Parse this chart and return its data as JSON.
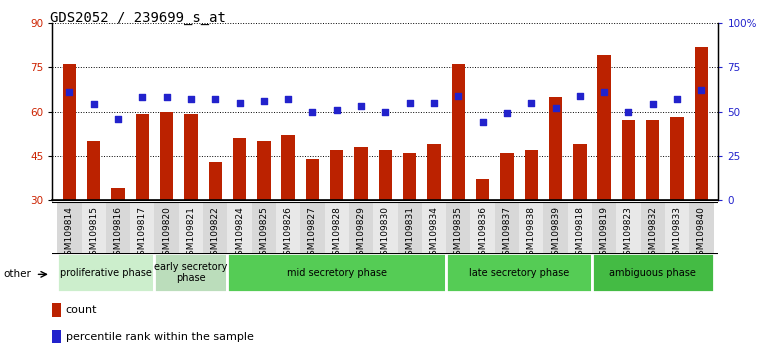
{
  "title": "GDS2052 / 239699_s_at",
  "samples": [
    "GSM109814",
    "GSM109815",
    "GSM109816",
    "GSM109817",
    "GSM109820",
    "GSM109821",
    "GSM109822",
    "GSM109824",
    "GSM109825",
    "GSM109826",
    "GSM109827",
    "GSM109828",
    "GSM109829",
    "GSM109830",
    "GSM109831",
    "GSM109834",
    "GSM109835",
    "GSM109836",
    "GSM109837",
    "GSM109838",
    "GSM109839",
    "GSM109818",
    "GSM109819",
    "GSM109823",
    "GSM109832",
    "GSM109833",
    "GSM109840"
  ],
  "counts": [
    76,
    50,
    34,
    59,
    60,
    59,
    43,
    51,
    50,
    52,
    44,
    47,
    48,
    47,
    46,
    49,
    76,
    37,
    46,
    47,
    65,
    49,
    79,
    57,
    57,
    58,
    82
  ],
  "percentiles": [
    61,
    54,
    46,
    58,
    58,
    57,
    57,
    55,
    56,
    57,
    50,
    51,
    53,
    50,
    55,
    55,
    59,
    44,
    49,
    55,
    52,
    59,
    61,
    50,
    54,
    57,
    62
  ],
  "phases": [
    {
      "name": "proliferative phase",
      "count": 4,
      "color": "#cceecc"
    },
    {
      "name": "early secretory\nphase",
      "count": 3,
      "color": "#bbddbb"
    },
    {
      "name": "mid secretory phase",
      "count": 9,
      "color": "#55cc55"
    },
    {
      "name": "late secretory phase",
      "count": 6,
      "color": "#55cc55"
    },
    {
      "name": "ambiguous phase",
      "count": 5,
      "color": "#44bb44"
    }
  ],
  "bar_color": "#bb2200",
  "dot_color": "#2222cc",
  "ylim_left": [
    30,
    90
  ],
  "ylim_right": [
    0,
    100
  ],
  "yticks_left": [
    30,
    45,
    60,
    75,
    90
  ],
  "yticks_right": [
    0,
    25,
    50,
    75,
    100
  ],
  "ytick_labels_right": [
    "0",
    "25",
    "50",
    "75",
    "100%"
  ],
  "background_color": "#ffffff",
  "plot_bg": "#ffffff",
  "title_fontsize": 10,
  "tick_fontsize": 6.5,
  "legend_fontsize": 8,
  "phase_fontsize": 7
}
